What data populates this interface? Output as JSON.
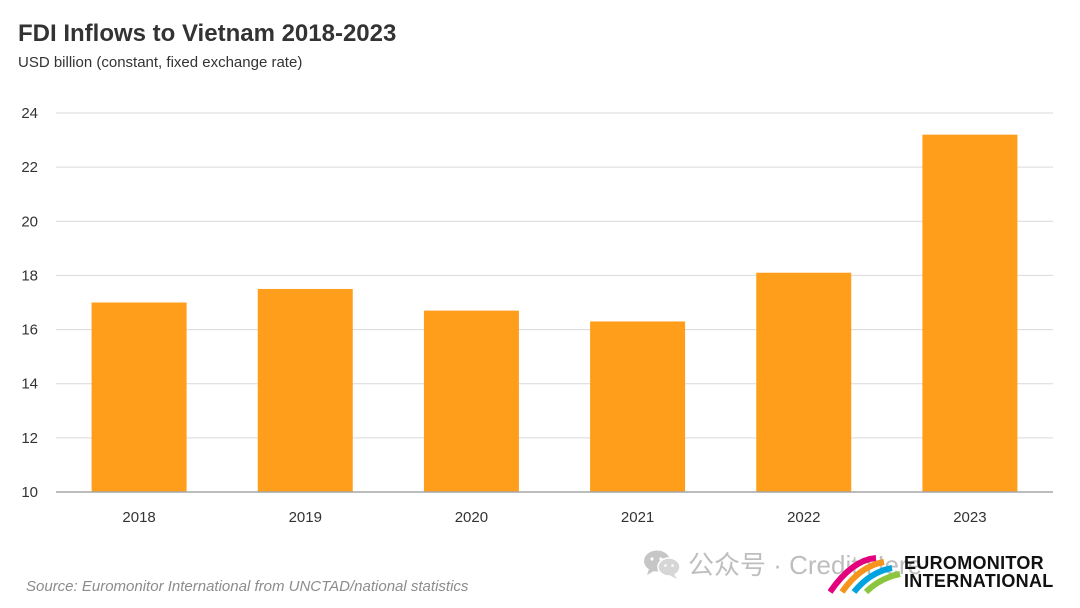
{
  "chart_data": {
    "type": "bar",
    "title": "FDI Inflows to Vietnam 2018-2023",
    "subtitle": "USD billion (constant, fixed exchange rate)",
    "categories": [
      "2018",
      "2019",
      "2020",
      "2021",
      "2022",
      "2023"
    ],
    "values": [
      17.0,
      17.5,
      16.7,
      16.3,
      18.1,
      23.2
    ],
    "ylim": [
      10,
      24
    ],
    "yticks": [
      10,
      12,
      14,
      16,
      18,
      20,
      22,
      24
    ],
    "grid": true,
    "bar_color": "#FF9E1B",
    "gridline_color": "#d9d9d9"
  },
  "source": "Source: Euromonitor International from UNCTAD/national statistics",
  "watermark": {
    "icon": "wechat-icon",
    "text": "公众号 · Credit Here"
  },
  "logo": {
    "line1": "EUROMONITOR",
    "line2": "INTERNATIONAL",
    "colors": [
      "#E4007C",
      "#F7941D",
      "#00A3E0",
      "#8CC63F"
    ]
  }
}
